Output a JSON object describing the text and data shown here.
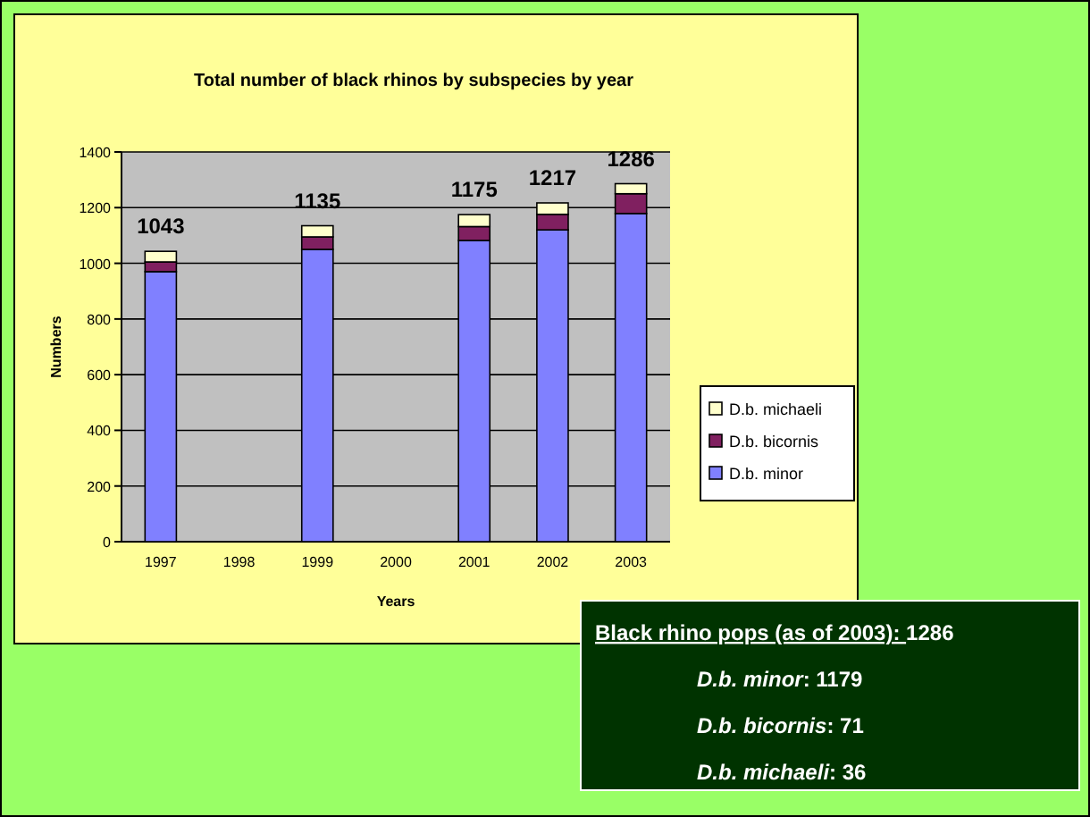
{
  "chart_data": {
    "type": "bar",
    "title": "Total number of black rhinos by subspecies by year",
    "xlabel": "Years",
    "ylabel": "Numbers",
    "categories": [
      "1997",
      "1998",
      "1999",
      "2000",
      "2001",
      "2002",
      "2003"
    ],
    "series": [
      {
        "name": "D.b. minor",
        "color": "#8080ff",
        "values": [
          970,
          null,
          1050,
          null,
          1082,
          1120,
          1179
        ]
      },
      {
        "name": "D.b. bicornis",
        "color": "#802060",
        "values": [
          35,
          null,
          45,
          null,
          50,
          56,
          71
        ]
      },
      {
        "name": "D.b. michaeli",
        "color": "#ffffcc",
        "values": [
          38,
          null,
          40,
          null,
          43,
          41,
          36
        ]
      }
    ],
    "stacked": true,
    "totals": [
      "1043",
      null,
      "1135",
      null,
      "1175",
      "1217",
      "1286"
    ],
    "ylim": [
      0,
      1400
    ],
    "yticks": [
      0,
      200,
      400,
      600,
      800,
      1000,
      1200,
      1400
    ],
    "grid": "y",
    "legend": "right",
    "annotations": [
      "Black rhino pops (as of 2003): 1286",
      "D.b. minor: 1179",
      "D.b. bicornis: 71",
      "D.b. michaeli: 36"
    ]
  }
}
